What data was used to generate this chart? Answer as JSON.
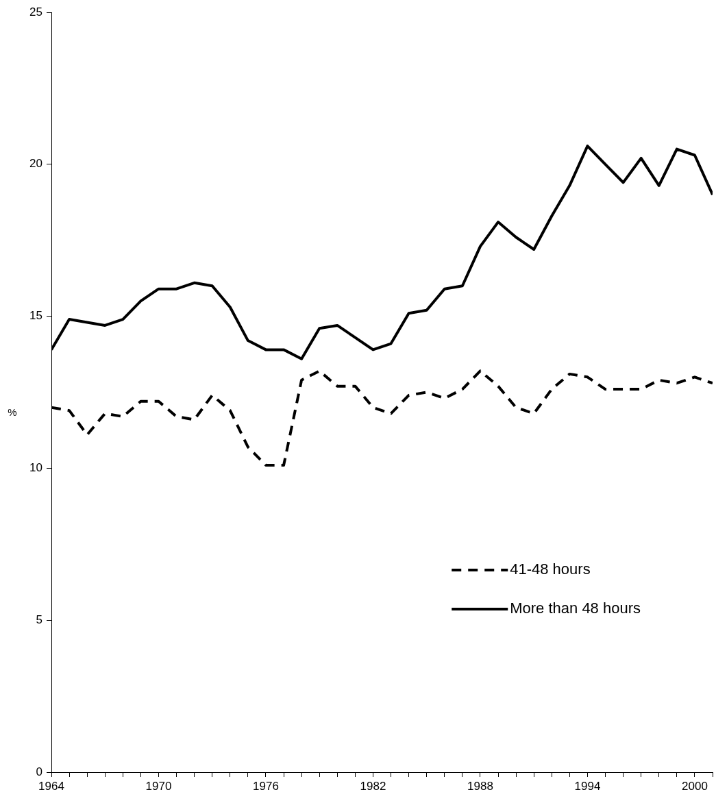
{
  "chart_data": {
    "type": "line",
    "ylabel": "%",
    "x": [
      1964,
      1965,
      1966,
      1967,
      1968,
      1969,
      1970,
      1971,
      1972,
      1973,
      1974,
      1975,
      1976,
      1977,
      1978,
      1979,
      1980,
      1981,
      1982,
      1983,
      1984,
      1985,
      1986,
      1987,
      1988,
      1989,
      1990,
      1991,
      1992,
      1993,
      1994,
      1995,
      1996,
      1997,
      1998,
      1999,
      2000,
      2001
    ],
    "series": [
      {
        "name": "41-48 hours",
        "color": "#000000",
        "line_style": "dashed",
        "values": [
          12.0,
          11.9,
          11.1,
          11.8,
          11.7,
          12.2,
          12.2,
          11.7,
          11.6,
          12.4,
          11.9,
          10.7,
          10.1,
          10.1,
          12.9,
          13.2,
          12.7,
          12.7,
          12.0,
          11.8,
          12.4,
          12.5,
          12.3,
          12.6,
          13.2,
          12.7,
          12.0,
          11.8,
          12.6,
          13.1,
          13.0,
          12.6,
          12.6,
          12.6,
          12.9,
          12.8,
          13.0,
          12.8
        ]
      },
      {
        "name": "More than 48 hours",
        "color": "#000000",
        "line_style": "solid",
        "values": [
          13.9,
          14.9,
          14.8,
          14.7,
          14.9,
          15.5,
          15.9,
          15.9,
          16.1,
          16.0,
          15.3,
          14.2,
          13.9,
          13.9,
          13.6,
          14.6,
          14.7,
          14.3,
          13.9,
          14.1,
          15.1,
          15.2,
          15.9,
          16.0,
          17.3,
          18.1,
          17.6,
          17.2,
          18.3,
          19.3,
          20.6,
          20.0,
          19.4,
          20.2,
          19.3,
          20.5,
          20.3,
          19.0
        ]
      }
    ],
    "xlim": [
      1964,
      2001
    ],
    "xticks": [
      1964,
      {
        "value": 1965,
        "label": null
      },
      {
        "value": 1966,
        "label": null
      },
      {
        "value": 1967,
        "label": null
      },
      {
        "value": 1968,
        "label": null
      },
      {
        "value": 1969,
        "label": null
      },
      1970,
      {
        "value": 1971,
        "label": null
      },
      {
        "value": 1972,
        "label": null
      },
      {
        "value": 1973,
        "label": null
      },
      {
        "value": 1974,
        "label": null
      },
      {
        "value": 1975,
        "label": null
      },
      1976,
      {
        "value": 1977,
        "label": null
      },
      {
        "value": 1978,
        "label": null
      },
      {
        "value": 1979,
        "label": null
      },
      {
        "value": 1980,
        "label": null
      },
      {
        "value": 1981,
        "label": null
      },
      1982,
      {
        "value": 1983,
        "label": null
      },
      {
        "value": 1984,
        "label": null
      },
      {
        "value": 1985,
        "label": null
      },
      {
        "value": 1986,
        "label": null
      },
      {
        "value": 1987,
        "label": null
      },
      1988,
      {
        "value": 1989,
        "label": null
      },
      {
        "value": 1990,
        "label": null
      },
      {
        "value": 1991,
        "label": null
      },
      {
        "value": 1992,
        "label": null
      },
      {
        "value": 1993,
        "label": null
      },
      1994,
      {
        "value": 1995,
        "label": null
      },
      {
        "value": 1996,
        "label": null
      },
      {
        "value": 1997,
        "label": null
      },
      {
        "value": 1998,
        "label": null
      },
      {
        "value": 1999,
        "label": null
      },
      2000,
      {
        "value": 2001,
        "label": null
      }
    ],
    "ylim": [
      0,
      25
    ],
    "yticks": [
      0,
      5,
      10,
      15,
      20,
      25
    ],
    "grid": false,
    "legend": "bottom right",
    "marker": "none"
  }
}
